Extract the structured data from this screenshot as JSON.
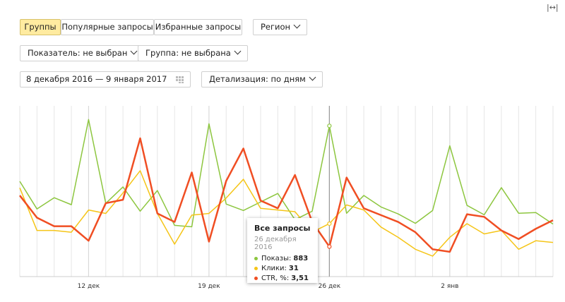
{
  "toolbar": {
    "tabs": [
      "Группы",
      "Популярные запросы",
      "Избранные запросы"
    ],
    "region": "Регион",
    "metric": "Показатель: не выбран",
    "group": "Группа: не выбрана",
    "date_range": "8 декабря 2016 — 9 января 2017",
    "detail": "Детализация: по дням",
    "expand_icon": "|↔|"
  },
  "chart_data": {
    "type": "line",
    "categories": [
      null,
      null,
      null,
      null,
      "12 дек",
      null,
      null,
      null,
      null,
      null,
      null,
      "19 дек",
      null,
      null,
      null,
      null,
      null,
      null,
      "26 дек",
      null,
      null,
      null,
      null,
      null,
      null,
      "2 янв",
      null,
      null,
      null,
      null,
      null,
      null
    ],
    "series": [
      {
        "name": "Показы:",
        "color": "#8dc63f",
        "ylim": [
          0,
          1000
        ],
        "values": [
          558,
          396,
          462,
          421,
          920,
          429,
          525,
          383,
          504,
          300,
          292,
          895,
          425,
          387,
          437,
          487,
          333,
          383,
          883,
          371,
          475,
          408,
          367,
          312,
          387,
          766,
          417,
          362,
          521,
          371,
          375,
          308
        ]
      },
      {
        "name": "Клики:",
        "color": "#f5c518",
        "ylim": [
          0,
          100
        ],
        "values": [
          52,
          27,
          27,
          26,
          39,
          37,
          49,
          62,
          37,
          19,
          36,
          37,
          46,
          57,
          40,
          39,
          38,
          26,
          31,
          42,
          39,
          29,
          23,
          16,
          12,
          23,
          31,
          25,
          27,
          16,
          21,
          20
        ]
      },
      {
        "name": "CTR, %:",
        "color": "#f04e23",
        "ylim": [
          0,
          20
        ],
        "values": [
          9.5,
          6.9,
          5.9,
          5.9,
          4.2,
          8.6,
          9.0,
          16.2,
          7.4,
          6.4,
          12.2,
          4.1,
          11.2,
          15.0,
          8.9,
          8.0,
          11.9,
          6.4,
          3.51,
          11.6,
          8.0,
          7.2,
          6.4,
          5.2,
          3.2,
          2.9,
          7.3,
          7.0,
          5.4,
          4.4,
          5.6,
          6.6
        ],
        "value_labels": [
          null,
          null,
          null,
          null,
          null,
          null,
          null,
          null,
          null,
          null,
          null,
          null,
          null,
          null,
          null,
          null,
          null,
          null,
          "3,51",
          null,
          null,
          null,
          null,
          null,
          null,
          null,
          null,
          null,
          null,
          null,
          null,
          null
        ]
      }
    ],
    "grid": true,
    "tooltip": {
      "title": "Все запросы",
      "date": "26 декабря 2016",
      "index": 18
    }
  }
}
